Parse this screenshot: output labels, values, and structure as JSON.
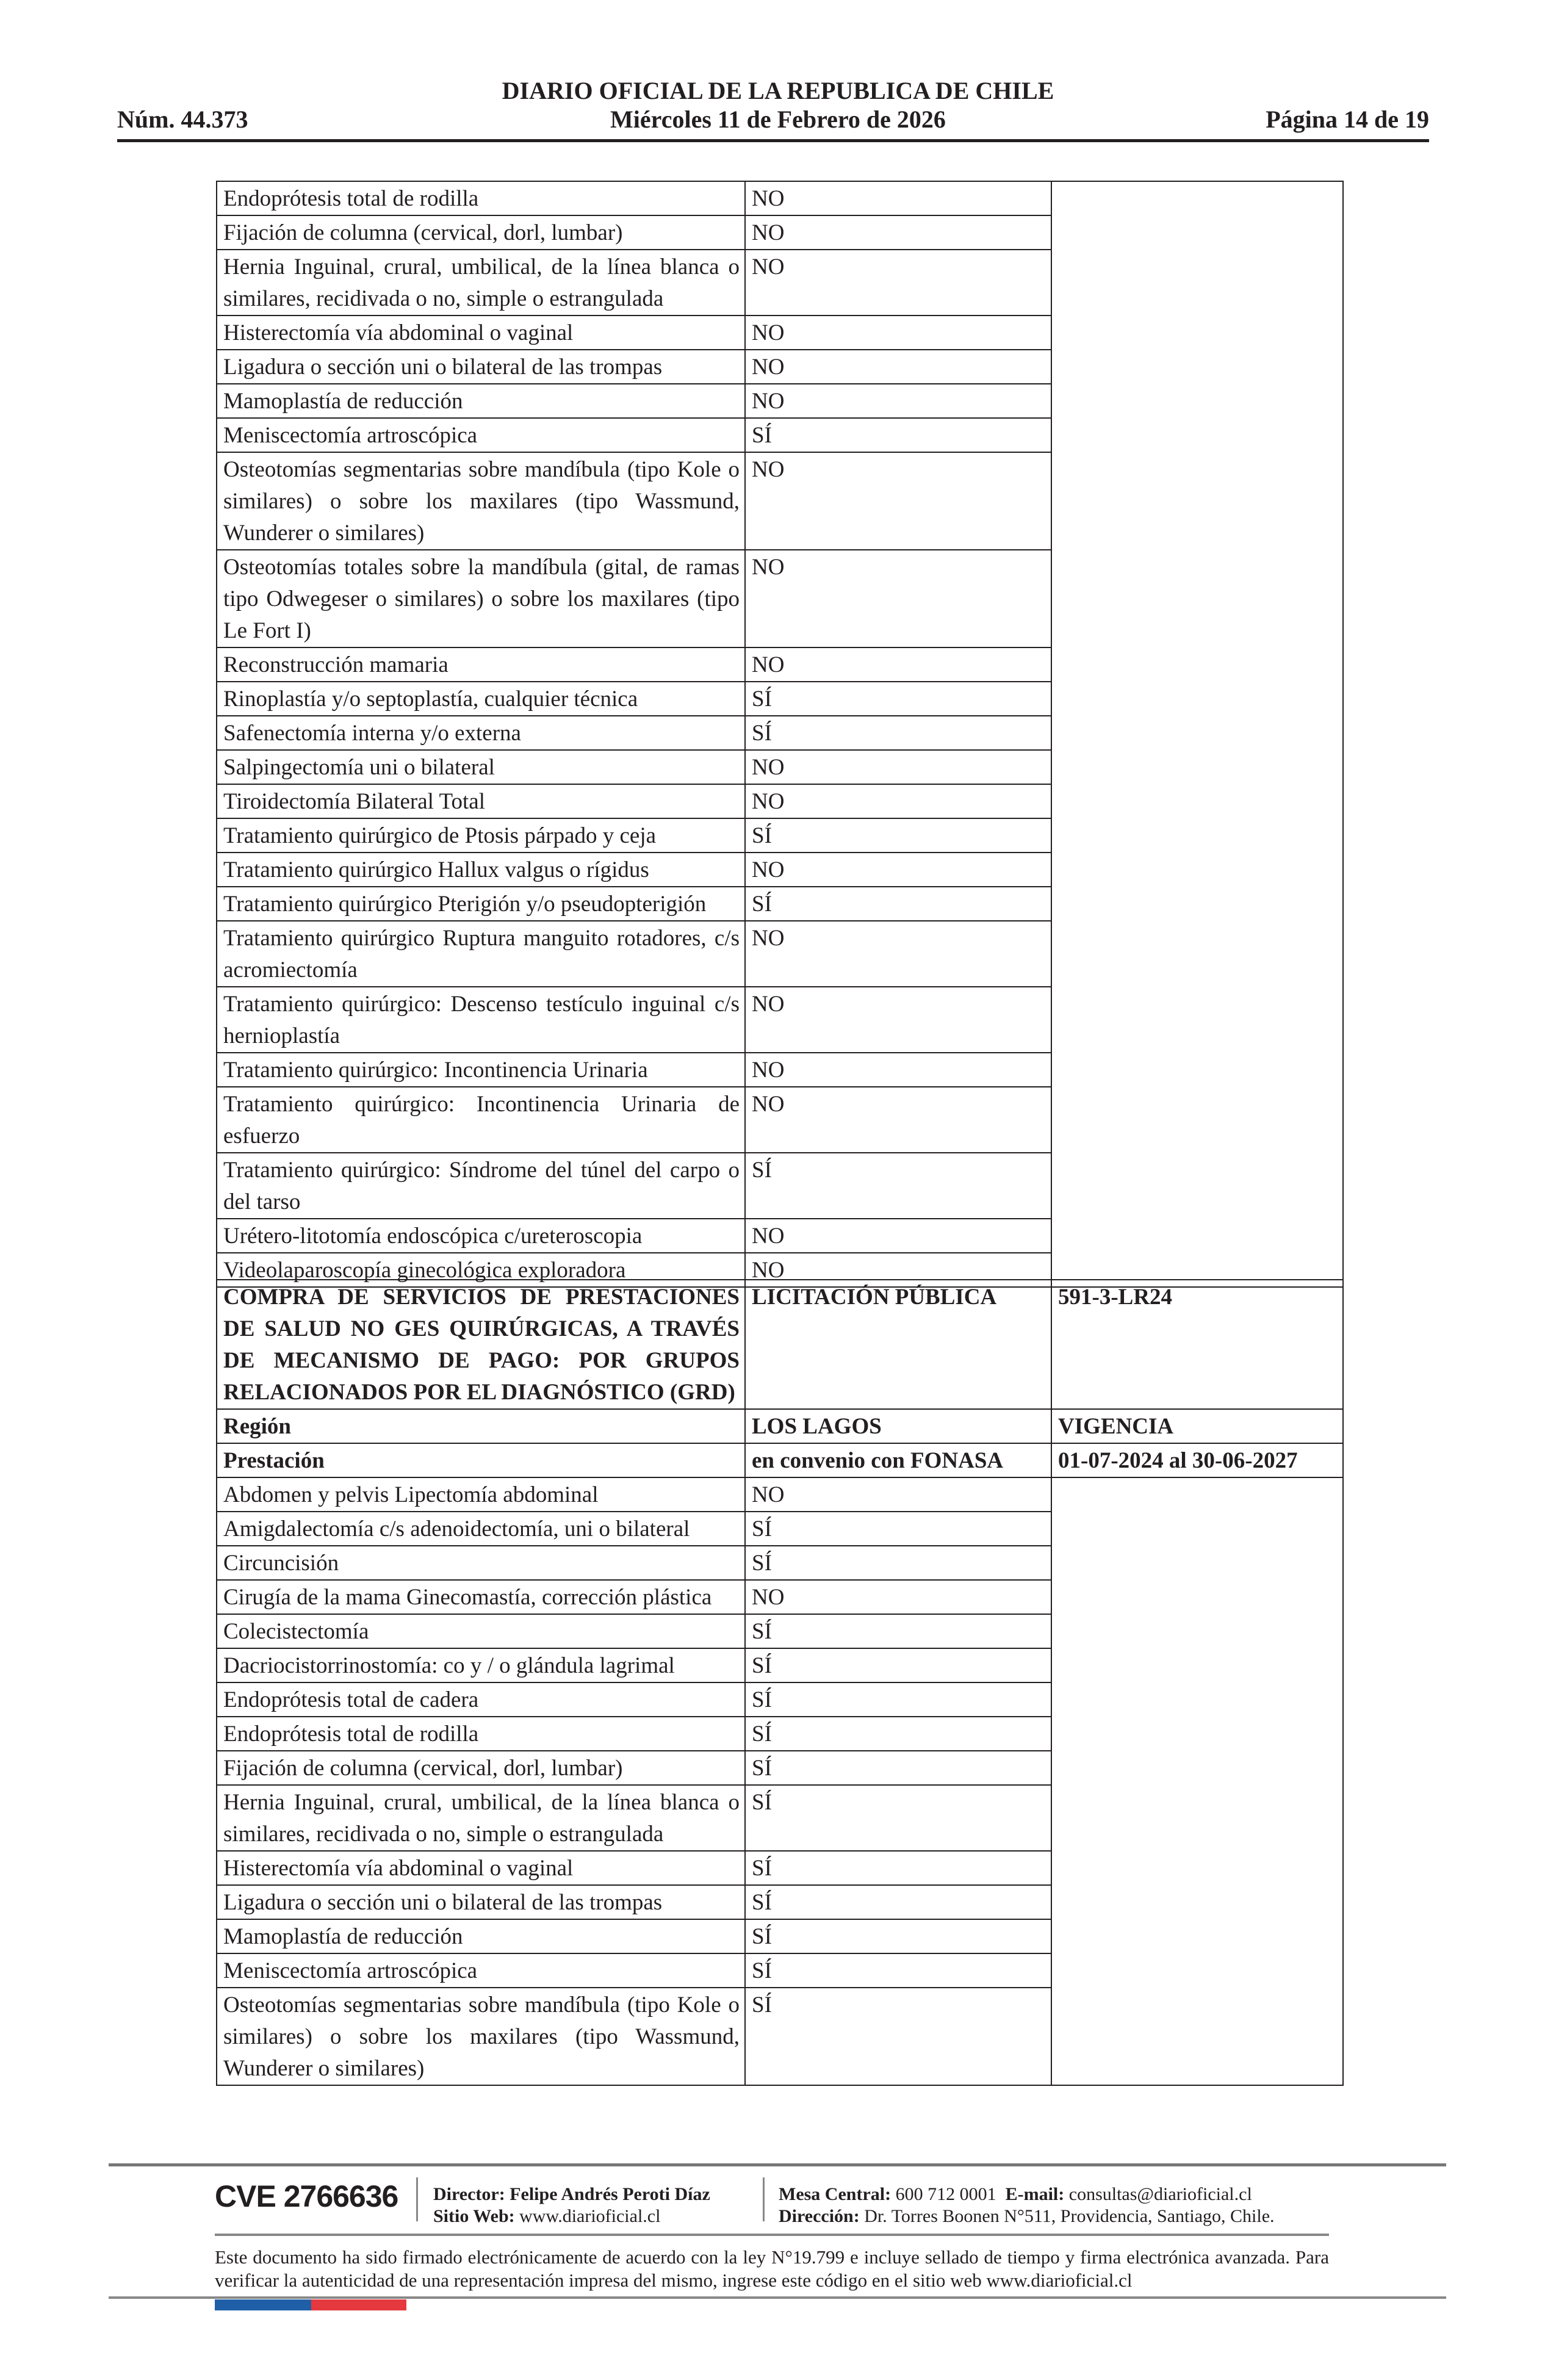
{
  "header": {
    "title": "DIARIO OFICIAL DE LA REPUBLICA DE CHILE",
    "number": "Núm. 44.373",
    "date": "Miércoles 11 de Febrero de 2026",
    "page": "Página 14 de 19"
  },
  "table1": {
    "rows": [
      [
        "Endoprótesis total de rodilla",
        "NO"
      ],
      [
        "Fijación de columna (cervical, dorl, lumbar)",
        "NO"
      ],
      [
        "Hernia Inguinal, crural, umbilical, de la línea blanca o similares, recidivada o no, simple o estrangulada",
        "NO"
      ],
      [
        "Histerectomía vía abdominal o vaginal",
        "NO"
      ],
      [
        "Ligadura o sección uni o bilateral de las trompas",
        "NO"
      ],
      [
        "Mamoplastía de reducción",
        "NO"
      ],
      [
        "Meniscectomía artroscópica",
        "SÍ"
      ],
      [
        "Osteotomías segmentarias sobre mandíbula (tipo Kole o similares) o sobre los maxilares (tipo Wassmund, Wunderer o similares)",
        "NO"
      ],
      [
        "Osteotomías totales sobre la mandíbula (gital, de ramas tipo Odwegeser o similares) o sobre los maxilares (tipo Le Fort I)",
        "NO"
      ],
      [
        "Reconstrucción mamaria",
        "NO"
      ],
      [
        "Rinoplastía y/o septoplastía, cualquier técnica",
        "SÍ"
      ],
      [
        "Safenectomía interna y/o externa",
        "SÍ"
      ],
      [
        "Salpingectomía uni o bilateral",
        "NO"
      ],
      [
        "Tiroidectomía Bilateral Total",
        "NO"
      ],
      [
        "Tratamiento quirúrgico de Ptosis párpado y ceja",
        "SÍ"
      ],
      [
        "Tratamiento quirúrgico Hallux valgus o rígidus",
        "NO"
      ],
      [
        "Tratamiento quirúrgico Pterigión y/o pseudopterigión",
        "SÍ"
      ],
      [
        "Tratamiento quirúrgico Ruptura manguito rotadores, c/s acromiectomía",
        "NO"
      ],
      [
        "Tratamiento quirúrgico: Descenso testículo inguinal c/s hernioplastía",
        "NO"
      ],
      [
        "Tratamiento quirúrgico: Incontinencia Urinaria",
        "NO"
      ],
      [
        "Tratamiento quirúrgico: Incontinencia Urinaria de esfuerzo",
        "NO"
      ],
      [
        "Tratamiento quirúrgico: Síndrome del túnel del carpo o del tarso",
        "SÍ"
      ],
      [
        "Urétero-litotomía endoscópica c/ureteroscopia",
        "NO"
      ],
      [
        "Videolaparoscopía ginecológica exploradora",
        "NO"
      ]
    ]
  },
  "table2": {
    "header": [
      [
        "COMPRA DE SERVICIOS DE PRESTACIONES DE SALUD NO GES QUIRÚRGICAS, A TRAVÉS DE MECANISMO DE PAGO: POR GRUPOS RELACIONADOS POR EL DIAGNÓSTICO (GRD)",
        "LICITACIÓN PÚBLICA",
        "591-3-LR24"
      ],
      [
        "Región",
        "LOS LAGOS",
        "VIGENCIA"
      ],
      [
        "Prestación",
        "en convenio con FONASA",
        "01-07-2024 al 30-06-2027"
      ]
    ],
    "rows": [
      [
        "Abdomen y pelvis Lipectomía abdominal",
        "NO"
      ],
      [
        "Amigdalectomía c/s adenoidectomía, uni o bilateral",
        "SÍ"
      ],
      [
        "Circuncisión",
        "SÍ"
      ],
      [
        "Cirugía de la mama Ginecomastía, corrección plástica",
        "NO"
      ],
      [
        "Colecistectomía",
        "SÍ"
      ],
      [
        "Dacriocistorrinostomía: co y / o glándula lagrimal",
        "SÍ"
      ],
      [
        "Endoprótesis total de cadera",
        "SÍ"
      ],
      [
        "Endoprótesis total de rodilla",
        "SÍ"
      ],
      [
        "Fijación de columna (cervical, dorl, lumbar)",
        "SÍ"
      ],
      [
        "Hernia Inguinal, crural, umbilical, de la línea blanca o similares, recidivada o no, simple o estrangulada",
        "SÍ"
      ],
      [
        "Histerectomía vía abdominal o vaginal",
        "SÍ"
      ],
      [
        "Ligadura o sección uni o bilateral de las trompas",
        "SÍ"
      ],
      [
        "Mamoplastía de reducción",
        "SÍ"
      ],
      [
        "Meniscectomía artroscópica",
        "SÍ"
      ],
      [
        "Osteotomías segmentarias sobre mandíbula (tipo Kole o similares) o sobre los maxilares (tipo Wassmund, Wunderer o similares)",
        "SÍ"
      ]
    ]
  },
  "footer": {
    "cve": "CVE 2766636",
    "director_label": "Director:",
    "director": "Felipe Andrés Peroti Díaz",
    "site_label": "Sitio Web:",
    "site": "www.diarioficial.cl",
    "phone_label": "Mesa Central:",
    "phone": "600 712 0001",
    "email_label": "E-mail:",
    "email": "consultas@diarioficial.cl",
    "address_label": "Dirección:",
    "address": "Dr. Torres Boonen N°511, Providencia, Santiago, Chile.",
    "legal": "Este documento ha sido firmado electrónicamente de acuerdo con la ley N°19.799 e incluye sellado de tiempo y firma electrónica avanzada. Para verificar la autenticidad de una representación impresa del mismo, ingrese este código en el sitio web www.diarioficial.cl"
  },
  "colors": {
    "flag_blue": "#1f5fa8",
    "flag_red": "#e5383f"
  }
}
